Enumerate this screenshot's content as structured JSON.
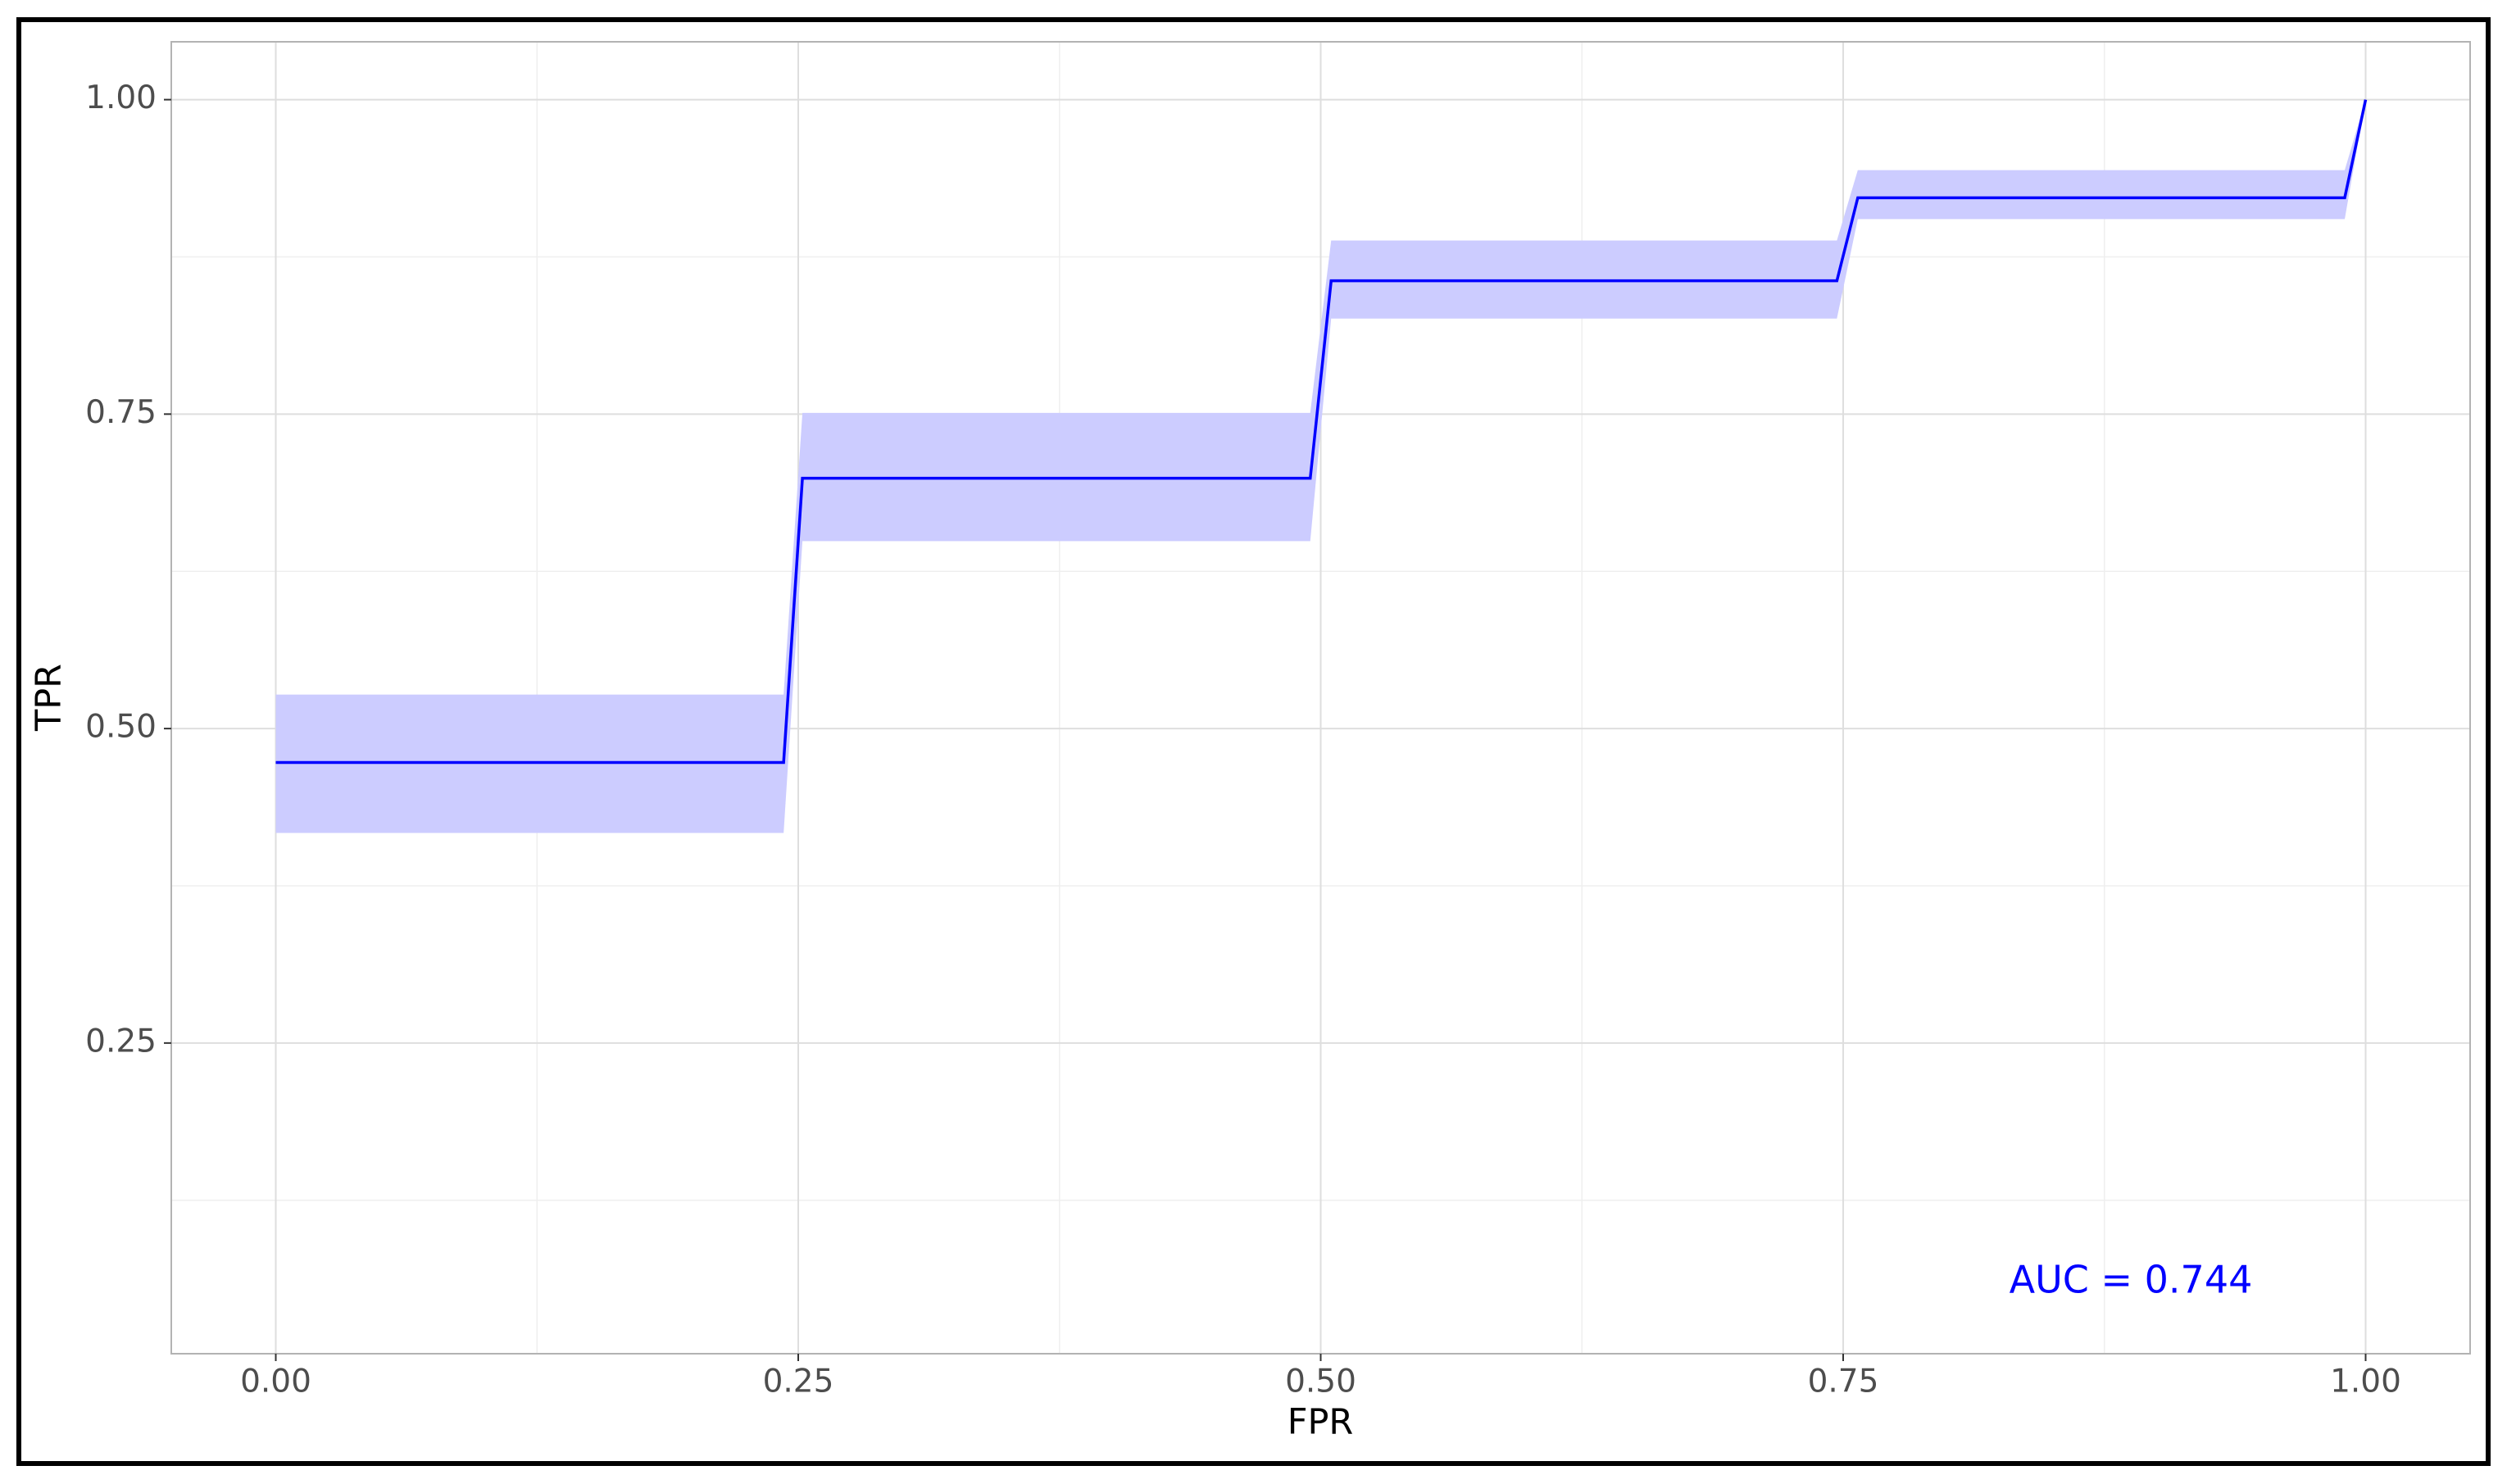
{
  "chart_data": {
    "type": "line",
    "x_label": "FPR",
    "y_label": "TPR",
    "annotation": "AUC = 0.744",
    "x": [
      0,
      0.243,
      0.252,
      0.495,
      0.505,
      0.747,
      0.757,
      0.99,
      1.0
    ],
    "series": [
      {
        "color": "#0000ff",
        "values": [
          0.473,
          0.473,
          0.699,
          0.699,
          0.856,
          0.856,
          0.922,
          0.922,
          1.0
        ]
      }
    ],
    "band": {
      "color": "#ccccff",
      "lower": [
        0.417,
        0.417,
        0.649,
        0.649,
        0.826,
        0.826,
        0.905,
        0.905,
        1.0
      ],
      "upper": [
        0.527,
        0.527,
        0.751,
        0.751,
        0.888,
        0.888,
        0.944,
        0.944,
        1.0
      ]
    },
    "xlim": [
      -0.05,
      1.05
    ],
    "ylim": [
      0.003,
      1.046
    ],
    "xticks": [
      {
        "value": 0,
        "label": "0.00"
      },
      0.25,
      {
        "value": 0.5,
        "label": "0.50"
      },
      0.75,
      {
        "value": 1,
        "label": "1.00"
      }
    ],
    "yticks": [
      0.25,
      {
        "value": 0.5,
        "label": "0.50"
      },
      0.75,
      {
        "value": 1,
        "label": "1.00"
      }
    ],
    "grid": true
  }
}
